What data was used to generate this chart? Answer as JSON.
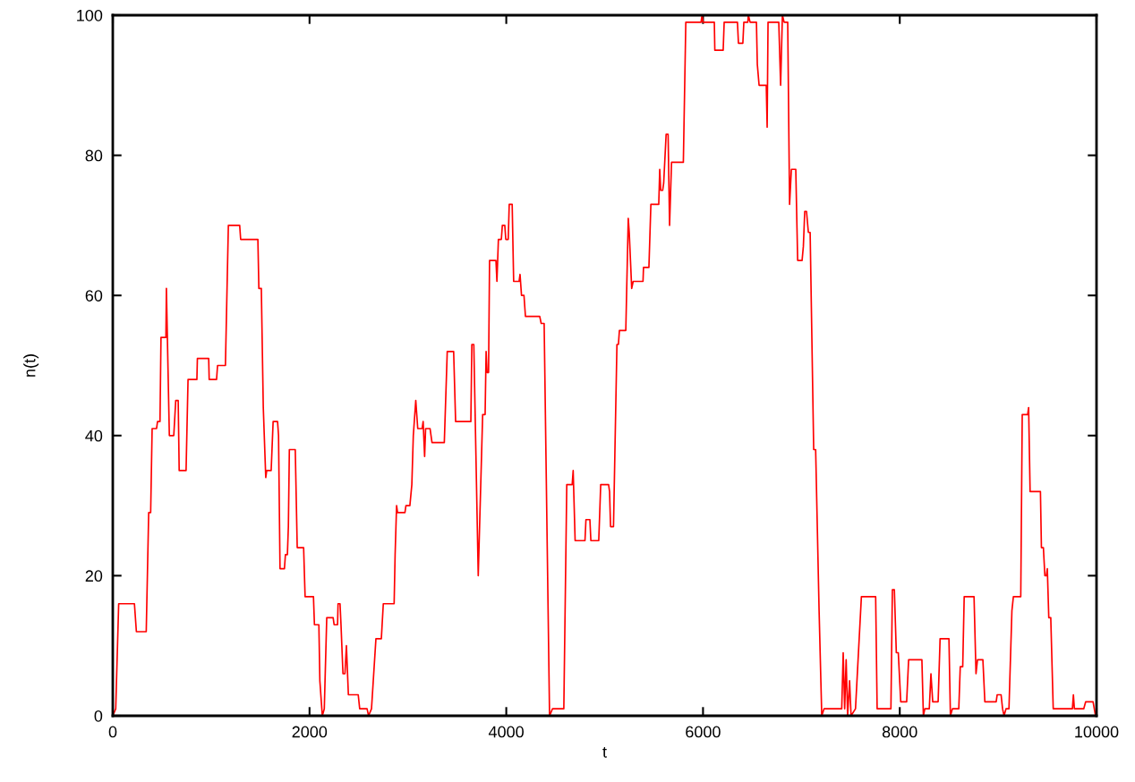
{
  "chart_data": {
    "type": "line",
    "xlabel": "t",
    "ylabel": "n(t)",
    "xlim": [
      0,
      10000
    ],
    "ylim": [
      0,
      100
    ],
    "xticks": [
      0,
      2000,
      4000,
      6000,
      8000,
      10000
    ],
    "yticks": [
      0,
      20,
      40,
      60,
      80,
      100
    ],
    "grid": false,
    "marker": "none",
    "line_style": "solid",
    "series": [
      {
        "color": "#ff0000",
        "x": [
          0,
          30,
          60,
          220,
          240,
          340,
          365,
          385,
          400,
          445,
          455,
          480,
          490,
          540,
          545,
          575,
          620,
          640,
          665,
          675,
          745,
          765,
          855,
          860,
          975,
          980,
          1055,
          1065,
          1145,
          1175,
          1290,
          1300,
          1475,
          1485,
          1510,
          1530,
          1555,
          1565,
          1610,
          1630,
          1675,
          1685,
          1700,
          1745,
          1755,
          1775,
          1785,
          1795,
          1855,
          1875,
          1940,
          1955,
          2040,
          2050,
          2095,
          2105,
          2130,
          2150,
          2175,
          2240,
          2250,
          2285,
          2290,
          2310,
          2320,
          2340,
          2360,
          2375,
          2395,
          2495,
          2510,
          2585,
          2600,
          2630,
          2675,
          2730,
          2750,
          2860,
          2870,
          2885,
          2895,
          2970,
          2980,
          3020,
          3040,
          3055,
          3080,
          3090,
          3100,
          3145,
          3155,
          3170,
          3180,
          3225,
          3245,
          3370,
          3400,
          3465,
          3485,
          3640,
          3650,
          3670,
          3715,
          3760,
          3785,
          3795,
          3805,
          3820,
          3830,
          3895,
          3905,
          3920,
          3950,
          3960,
          3985,
          3995,
          4020,
          4030,
          4060,
          4075,
          4130,
          4140,
          4155,
          4180,
          4195,
          4340,
          4355,
          4385,
          4440,
          4470,
          4585,
          4615,
          4670,
          4680,
          4700,
          4800,
          4810,
          4850,
          4860,
          4940,
          4960,
          5040,
          5050,
          5060,
          5090,
          5125,
          5140,
          5150,
          5215,
          5240,
          5250,
          5275,
          5290,
          5390,
          5395,
          5450,
          5470,
          5550,
          5560,
          5570,
          5590,
          5600,
          5625,
          5645,
          5660,
          5680,
          5800,
          5825,
          5980,
          5990,
          6000,
          6115,
          6120,
          6205,
          6215,
          6350,
          6360,
          6405,
          6415,
          6455,
          6461,
          6479,
          6543,
          6552,
          6570,
          6643,
          6652,
          6661,
          6770,
          6789,
          6807,
          6825,
          6861,
          6880,
          6898,
          6943,
          6962,
          7007,
          7020,
          7034,
          7052,
          7071,
          7089,
          7125,
          7145,
          7180,
          7207,
          7230,
          7410,
          7425,
          7440,
          7455,
          7470,
          7490,
          7505,
          7550,
          7610,
          7755,
          7770,
          7910,
          7925,
          7945,
          7965,
          7985,
          8010,
          8070,
          8090,
          8225,
          8240,
          8255,
          8300,
          8317,
          8335,
          8390,
          8410,
          8500,
          8515,
          8535,
          8600,
          8615,
          8640,
          8655,
          8755,
          8775,
          8790,
          8845,
          8865,
          8980,
          8990,
          9030,
          9045,
          9060,
          9080,
          9110,
          9125,
          9140,
          9155,
          9230,
          9245,
          9300,
          9310,
          9325,
          9430,
          9440,
          9460,
          9475,
          9490,
          9500,
          9515,
          9535,
          9560,
          9755,
          9765,
          9775,
          9870,
          9890,
          9965,
          9990
        ],
        "values": [
          0,
          1,
          16,
          16,
          12,
          12,
          29,
          29,
          41,
          41,
          42,
          42,
          54,
          54,
          61,
          40,
          40,
          45,
          45,
          35,
          35,
          48,
          48,
          51,
          51,
          48,
          48,
          50,
          50,
          70,
          70,
          68,
          68,
          61,
          61,
          44,
          34,
          35,
          35,
          42,
          42,
          40,
          21,
          21,
          23,
          23,
          27,
          38,
          38,
          24,
          24,
          17,
          17,
          13,
          13,
          5,
          0,
          1,
          14,
          14,
          13,
          13,
          16,
          16,
          13,
          6,
          6,
          10,
          3,
          3,
          1,
          1,
          0,
          1,
          11,
          11,
          16,
          16,
          23,
          30,
          29,
          29,
          30,
          30,
          33,
          40,
          45,
          43,
          41,
          41,
          42,
          37,
          41,
          41,
          39,
          39,
          52,
          52,
          42,
          42,
          53,
          53,
          20,
          43,
          43,
          52,
          49,
          49,
          65,
          65,
          62,
          68,
          68,
          70,
          70,
          68,
          68,
          73,
          73,
          62,
          62,
          63,
          60,
          60,
          57,
          57,
          56,
          56,
          0,
          1,
          1,
          33,
          33,
          35,
          25,
          25,
          28,
          28,
          25,
          25,
          33,
          33,
          32,
          27,
          27,
          53,
          53,
          55,
          55,
          71,
          69,
          61,
          62,
          62,
          64,
          64,
          73,
          73,
          78,
          75,
          75,
          76,
          83,
          83,
          70,
          79,
          79,
          99,
          99,
          100,
          99,
          99,
          95,
          95,
          99,
          99,
          96,
          96,
          99,
          99,
          100,
          99,
          99,
          93,
          90,
          90,
          84,
          99,
          99,
          90,
          100,
          99,
          99,
          73,
          78,
          78,
          65,
          65,
          67,
          72,
          72,
          69,
          69,
          38,
          38,
          15,
          0,
          1,
          1,
          9,
          1,
          8,
          0,
          5,
          0,
          1,
          17,
          17,
          1,
          1,
          18,
          18,
          9,
          9,
          2,
          2,
          8,
          8,
          0,
          1,
          1,
          6,
          2,
          2,
          11,
          11,
          0,
          1,
          1,
          7,
          7,
          17,
          17,
          6,
          8,
          8,
          2,
          2,
          3,
          3,
          1,
          0,
          1,
          1,
          8,
          15,
          17,
          17,
          43,
          43,
          44,
          32,
          32,
          24,
          24,
          20,
          20,
          21,
          14,
          14,
          1,
          1,
          3,
          1,
          1,
          2,
          2,
          0
        ]
      }
    ]
  }
}
